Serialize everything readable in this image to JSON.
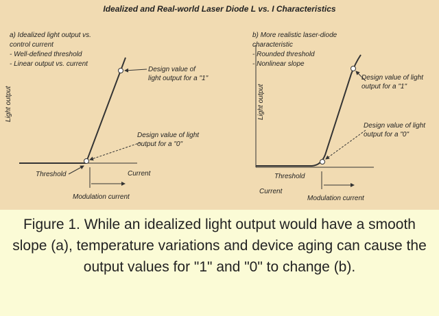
{
  "title": "Idealized and Real-world Laser Diode L vs. I Characteristics",
  "panel_a": {
    "heading": [
      "a) Idealized light output vs.",
      "control current",
      "- Well-defined threshold",
      "- Linear output vs. current"
    ],
    "y_axis": "Light output",
    "design_one": [
      "Design value of",
      "light output for a \"1\""
    ],
    "design_zero": [
      "Design value of light",
      "output for a \"0\""
    ],
    "threshold": "Threshold",
    "current": "Current",
    "modulation": "Modulation current"
  },
  "panel_b": {
    "heading": [
      "b) More realistic laser-diode",
      "characteristic",
      "- Rounded threshold",
      "- Nonlinear slope"
    ],
    "y_axis": "Light output",
    "design_one": [
      "Design value of light",
      "output for a \"1\""
    ],
    "design_zero": [
      "Design value of light",
      "output for a \"0\""
    ],
    "threshold": "Threshold",
    "current": "Current",
    "modulation": "Modulation current"
  },
  "caption": "Figure 1. While an idealized light output would have a smooth slope (a), temperature variations and device aging can cause the output values for \"1\" and \"0\" to change (b)."
}
